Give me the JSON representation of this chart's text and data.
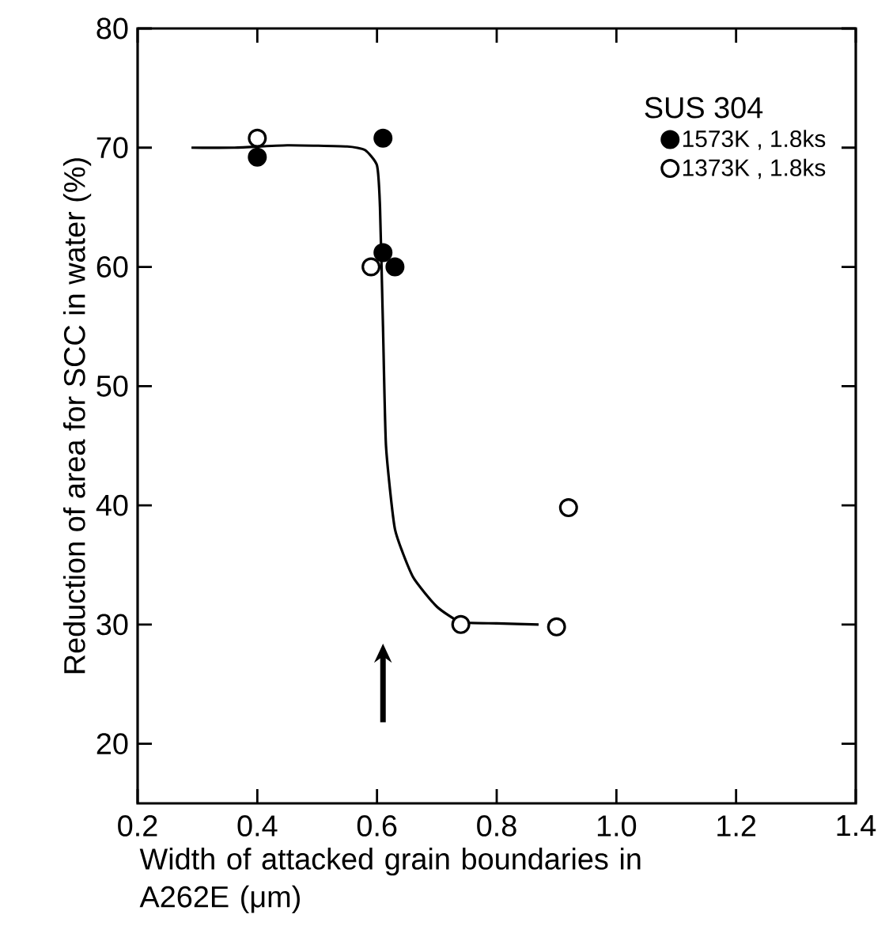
{
  "chart_data": {
    "type": "scatter",
    "xlabel": "Width of attacked grain boundaries in A262E (μm)",
    "ylabel": "Reduction of area for SCC in water (%)",
    "legend_title": "SUS 304",
    "xlim": [
      0.2,
      1.4
    ],
    "xticks": [
      0.2,
      0.4,
      0.6,
      0.8,
      {
        "value": 1.0,
        "label": "1.0"
      },
      1.2,
      1.4
    ],
    "ylim": [
      15,
      80
    ],
    "yticks": [
      20,
      30,
      40,
      50,
      60,
      70,
      80
    ],
    "legend": "top right",
    "grid": false,
    "series": [
      {
        "name": "1573K , 1.8ks",
        "marker": "circle",
        "color": "#000000",
        "x": [
          0.4,
          0.61,
          0.61,
          0.63
        ],
        "values": [
          69.2,
          70.8,
          61.2,
          60
        ]
      },
      {
        "name": "1373K , 1.8ks",
        "marker": "circle",
        "color": "#ffffff",
        "x": [
          0.4,
          0.59,
          0.74,
          0.9,
          0.92
        ],
        "values": [
          70.8,
          60,
          30,
          29.8,
          39.8
        ]
      },
      {
        "type": "line",
        "marker": "none",
        "color": "#000000",
        "x": [
          0.29,
          0.36,
          0.45,
          0.55,
          0.58,
          0.6,
          0.605,
          0.61,
          0.615,
          0.63,
          0.66,
          0.7,
          0.74,
          0.8,
          0.87
        ],
        "values": [
          70,
          70,
          70.2,
          70.1,
          69.8,
          68.5,
          65,
          55,
          45,
          38,
          34,
          31.5,
          30.2,
          30.1,
          30
        ]
      }
    ]
  }
}
